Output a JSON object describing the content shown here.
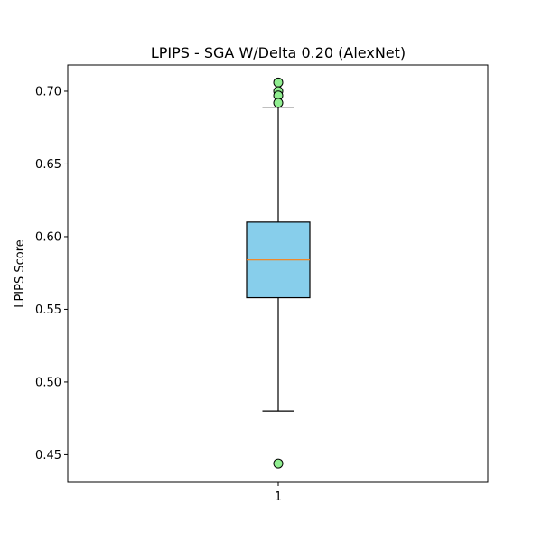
{
  "chart_data": {
    "type": "box",
    "title": "LPIPS - SGA W/Delta 0.20 (AlexNet)",
    "xlabel": "",
    "ylabel": "LPIPS Score",
    "categories": [
      "1"
    ],
    "ylim": [
      0.431,
      0.718
    ],
    "yticks": [
      "0.45",
      "0.50",
      "0.55",
      "0.60",
      "0.65",
      "0.70"
    ],
    "grid": false,
    "box": {
      "q1": 0.558,
      "median": 0.584,
      "q3": 0.61,
      "whisker_low": 0.48,
      "whisker_high": 0.689,
      "outliers": [
        0.706,
        0.7,
        0.697,
        0.692,
        0.444
      ]
    },
    "colors": {
      "box_fill": "#87ceeb",
      "median_line": "#ff7f0e",
      "outlier_fill": "#90ee90",
      "edge": "#000000"
    }
  }
}
